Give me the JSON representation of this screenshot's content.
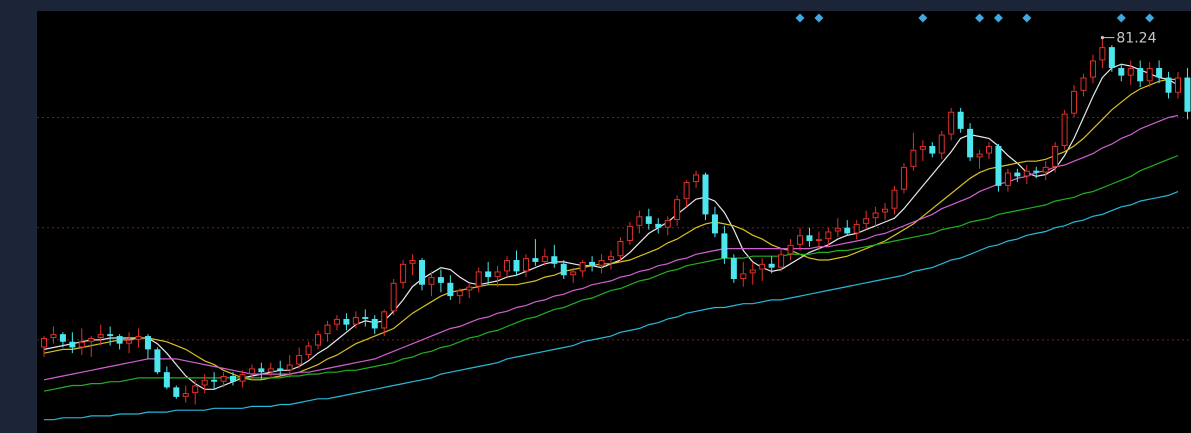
{
  "colors": {
    "background_outer": "#1c2438",
    "plot_background": "#000000",
    "grid": "#7a1c1c",
    "candle_up": "#e0302a",
    "candle_down": "#4ee6ee",
    "signal_marker": "#3fa8e0",
    "ma_white": "#e8e8e8",
    "ma_yellow": "#d8c020",
    "ma_magenta": "#d060d0",
    "ma_green": "#20b020",
    "ma_cyan": "#28b8d8"
  },
  "chart_data": {
    "type": "candlestick",
    "grid": true,
    "peak_label": "81.24",
    "ylim": [
      60.4,
      82.6
    ],
    "gridlines": [
      77.0,
      71.2,
      65.3
    ],
    "candles": [
      [
        64.9,
        65.5,
        64.4,
        65.4
      ],
      [
        65.4,
        66.0,
        65.1,
        65.6
      ],
      [
        65.6,
        65.7,
        64.9,
        65.2
      ],
      [
        65.2,
        65.7,
        64.6,
        64.9
      ],
      [
        64.9,
        65.9,
        64.5,
        65.2
      ],
      [
        65.2,
        65.5,
        64.4,
        65.4
      ],
      [
        65.4,
        66.1,
        65.0,
        65.6
      ],
      [
        65.6,
        66.0,
        65.0,
        65.5
      ],
      [
        65.5,
        65.6,
        64.8,
        65.1
      ],
      [
        65.1,
        65.7,
        64.6,
        65.3
      ],
      [
        65.3,
        65.9,
        64.9,
        65.5
      ],
      [
        65.5,
        65.6,
        64.3,
        64.8
      ],
      [
        64.8,
        64.9,
        63.5,
        63.6
      ],
      [
        63.6,
        63.9,
        62.7,
        62.8
      ],
      [
        62.8,
        62.9,
        62.2,
        62.3
      ],
      [
        62.3,
        62.9,
        62.0,
        62.5
      ],
      [
        62.5,
        63.2,
        61.9,
        62.9
      ],
      [
        62.9,
        63.5,
        62.5,
        63.2
      ],
      [
        63.2,
        63.6,
        62.7,
        63.1
      ],
      [
        63.1,
        63.6,
        62.8,
        63.4
      ],
      [
        63.4,
        63.6,
        62.9,
        63.1
      ],
      [
        63.1,
        63.7,
        62.8,
        63.5
      ],
      [
        63.5,
        64.0,
        63.2,
        63.8
      ],
      [
        63.8,
        64.1,
        63.2,
        63.6
      ],
      [
        63.6,
        64.1,
        63.3,
        63.8
      ],
      [
        63.8,
        64.2,
        63.4,
        63.7
      ],
      [
        63.7,
        64.5,
        63.3,
        64.0
      ],
      [
        64.0,
        64.9,
        63.8,
        64.5
      ],
      [
        64.5,
        65.2,
        64.3,
        65.0
      ],
      [
        65.0,
        65.8,
        64.8,
        65.6
      ],
      [
        65.6,
        66.3,
        65.2,
        66.1
      ],
      [
        66.1,
        66.6,
        65.8,
        66.4
      ],
      [
        66.4,
        66.7,
        65.8,
        66.1
      ],
      [
        66.1,
        66.8,
        65.9,
        66.5
      ],
      [
        66.5,
        66.9,
        66.0,
        66.4
      ],
      [
        66.4,
        66.6,
        65.6,
        65.9
      ],
      [
        65.9,
        66.9,
        65.5,
        66.8
      ],
      [
        66.8,
        68.5,
        66.6,
        68.3
      ],
      [
        68.3,
        69.5,
        68.0,
        69.3
      ],
      [
        69.3,
        69.8,
        68.7,
        69.5
      ],
      [
        69.5,
        69.6,
        67.9,
        68.2
      ],
      [
        68.2,
        68.9,
        67.6,
        68.6
      ],
      [
        68.6,
        69.0,
        67.8,
        68.3
      ],
      [
        68.3,
        68.7,
        67.4,
        67.6
      ],
      [
        67.6,
        68.0,
        67.2,
        67.9
      ],
      [
        67.9,
        68.3,
        67.5,
        68.1
      ],
      [
        68.1,
        69.1,
        67.8,
        68.9
      ],
      [
        68.9,
        69.4,
        68.2,
        68.6
      ],
      [
        68.6,
        69.2,
        68.1,
        68.9
      ],
      [
        68.9,
        69.7,
        68.6,
        69.5
      ],
      [
        69.5,
        70.0,
        68.7,
        68.9
      ],
      [
        68.9,
        69.8,
        68.6,
        69.6
      ],
      [
        69.6,
        70.6,
        69.2,
        69.4
      ],
      [
        69.4,
        70.1,
        69.2,
        69.7
      ],
      [
        69.7,
        70.3,
        69.1,
        69.3
      ],
      [
        69.3,
        69.5,
        68.5,
        68.7
      ],
      [
        68.7,
        69.1,
        68.3,
        68.9
      ],
      [
        68.9,
        69.5,
        68.6,
        69.4
      ],
      [
        69.4,
        69.7,
        68.9,
        69.2
      ],
      [
        69.2,
        69.8,
        68.8,
        69.5
      ],
      [
        69.5,
        70.0,
        69.0,
        69.7
      ],
      [
        69.7,
        70.7,
        69.4,
        70.5
      ],
      [
        70.5,
        71.5,
        70.3,
        71.3
      ],
      [
        71.3,
        72.1,
        70.9,
        71.8
      ],
      [
        71.8,
        72.2,
        71.1,
        71.4
      ],
      [
        71.4,
        71.7,
        70.9,
        71.2
      ],
      [
        71.2,
        71.8,
        70.8,
        71.6
      ],
      [
        71.6,
        72.9,
        71.3,
        72.7
      ],
      [
        72.7,
        73.7,
        72.3,
        73.6
      ],
      [
        73.6,
        74.2,
        73.3,
        74.0
      ],
      [
        74.0,
        74.1,
        71.6,
        71.9
      ],
      [
        71.9,
        72.3,
        70.7,
        70.9
      ],
      [
        70.9,
        71.3,
        69.3,
        69.6
      ],
      [
        69.6,
        69.8,
        68.3,
        68.5
      ],
      [
        68.5,
        69.4,
        68.1,
        68.8
      ],
      [
        68.8,
        69.4,
        68.2,
        69.0
      ],
      [
        69.0,
        69.6,
        68.4,
        69.3
      ],
      [
        69.3,
        69.7,
        68.8,
        69.1
      ],
      [
        69.1,
        70.1,
        68.9,
        69.8
      ],
      [
        69.8,
        70.6,
        69.5,
        70.3
      ],
      [
        70.3,
        71.2,
        70.0,
        70.8
      ],
      [
        70.8,
        71.2,
        70.2,
        70.5
      ],
      [
        70.5,
        71.0,
        70.0,
        70.6
      ],
      [
        70.6,
        71.2,
        70.2,
        71.0
      ],
      [
        71.0,
        71.7,
        70.7,
        71.2
      ],
      [
        71.2,
        71.6,
        70.8,
        70.9
      ],
      [
        70.9,
        71.6,
        70.6,
        71.4
      ],
      [
        71.4,
        72.1,
        71.1,
        71.7
      ],
      [
        71.7,
        72.3,
        71.3,
        72.0
      ],
      [
        72.0,
        72.5,
        71.6,
        72.2
      ],
      [
        72.2,
        73.4,
        71.9,
        73.2
      ],
      [
        73.2,
        74.6,
        73.0,
        74.4
      ],
      [
        74.4,
        76.2,
        74.2,
        75.3
      ],
      [
        75.3,
        75.8,
        74.7,
        75.5
      ],
      [
        75.5,
        75.7,
        74.9,
        75.1
      ],
      [
        75.1,
        76.3,
        74.8,
        76.1
      ],
      [
        76.1,
        77.5,
        75.8,
        77.3
      ],
      [
        77.3,
        77.5,
        76.2,
        76.4
      ],
      [
        76.4,
        76.7,
        74.7,
        74.9
      ],
      [
        74.9,
        75.3,
        74.3,
        75.1
      ],
      [
        75.1,
        75.7,
        74.8,
        75.5
      ],
      [
        75.5,
        75.6,
        73.1,
        73.4
      ],
      [
        73.4,
        74.3,
        73.1,
        74.1
      ],
      [
        74.1,
        74.3,
        73.6,
        73.9
      ],
      [
        73.9,
        74.5,
        73.5,
        74.2
      ],
      [
        74.2,
        74.4,
        73.8,
        74.1
      ],
      [
        74.1,
        74.7,
        73.7,
        74.4
      ],
      [
        74.4,
        75.7,
        74.1,
        75.5
      ],
      [
        75.5,
        77.4,
        75.3,
        77.2
      ],
      [
        77.2,
        78.7,
        77.0,
        78.4
      ],
      [
        78.4,
        79.3,
        78.1,
        79.1
      ],
      [
        79.1,
        80.3,
        78.8,
        80.0
      ],
      [
        80.0,
        81.2,
        79.6,
        80.7
      ],
      [
        80.7,
        80.8,
        79.4,
        79.6
      ],
      [
        79.6,
        79.8,
        78.9,
        79.2
      ],
      [
        79.2,
        80.0,
        78.7,
        79.6
      ],
      [
        79.6,
        80.0,
        78.6,
        78.9
      ],
      [
        78.9,
        79.9,
        78.6,
        79.6
      ],
      [
        79.6,
        80.0,
        78.8,
        79.1
      ],
      [
        79.1,
        79.4,
        78.0,
        78.3
      ],
      [
        78.3,
        79.4,
        78.0,
        79.1
      ],
      [
        79.1,
        79.6,
        76.9,
        77.3
      ]
    ],
    "ma_lines": [
      {
        "color": "#e8e8e8",
        "values": [
          64.8,
          64.9,
          65.0,
          65.1,
          65.2,
          65.3,
          65.3,
          65.4,
          65.4,
          65.4,
          65.4,
          65.4,
          65.1,
          64.6,
          64.0,
          63.4,
          63.0,
          62.7,
          62.7,
          62.9,
          63.1,
          63.3,
          63.4,
          63.5,
          63.6,
          63.7,
          63.7,
          63.9,
          64.2,
          64.6,
          64.9,
          65.3,
          65.7,
          66.1,
          66.3,
          66.2,
          66.3,
          66.8,
          67.4,
          68.1,
          68.5,
          68.8,
          69.1,
          69.0,
          68.6,
          68.3,
          68.2,
          68.3,
          68.4,
          68.6,
          68.7,
          68.9,
          69.1,
          69.3,
          69.4,
          69.4,
          69.3,
          69.2,
          69.2,
          69.1,
          69.3,
          69.5,
          69.9,
          70.4,
          70.9,
          71.2,
          71.5,
          71.9,
          72.3,
          72.7,
          72.8,
          72.6,
          72.0,
          71.1,
          70.0,
          69.4,
          69.1,
          68.9,
          69.0,
          69.3,
          69.6,
          69.9,
          70.1,
          70.3,
          70.6,
          70.8,
          70.9,
          71.1,
          71.3,
          71.5,
          71.7,
          72.2,
          72.8,
          73.4,
          74.0,
          74.6,
          75.2,
          75.9,
          76.1,
          76.0,
          75.9,
          75.5,
          75.0,
          74.6,
          74.1,
          73.9,
          74.0,
          74.3,
          75.0,
          75.9,
          77.0,
          78.1,
          79.1,
          79.6,
          79.8,
          79.7,
          79.5,
          79.3,
          79.1,
          79.0,
          78.7
        ]
      },
      {
        "color": "#d8c020",
        "values": [
          64.6,
          64.7,
          64.8,
          64.8,
          64.9,
          65.0,
          65.1,
          65.2,
          65.3,
          65.3,
          65.4,
          65.4,
          65.3,
          65.2,
          65.0,
          64.8,
          64.5,
          64.2,
          64.0,
          63.7,
          63.5,
          63.3,
          63.2,
          63.2,
          63.3,
          63.4,
          63.5,
          63.6,
          63.8,
          64.0,
          64.3,
          64.5,
          64.8,
          65.1,
          65.3,
          65.5,
          65.7,
          65.9,
          66.3,
          66.7,
          67.0,
          67.3,
          67.6,
          67.8,
          67.9,
          68.0,
          68.1,
          68.2,
          68.2,
          68.2,
          68.2,
          68.3,
          68.4,
          68.6,
          68.7,
          68.9,
          69.0,
          69.1,
          69.2,
          69.3,
          69.3,
          69.4,
          69.5,
          69.7,
          69.9,
          70.1,
          70.4,
          70.6,
          70.9,
          71.2,
          71.4,
          71.5,
          71.4,
          71.3,
          71.1,
          70.8,
          70.6,
          70.3,
          70.1,
          70.0,
          69.8,
          69.6,
          69.5,
          69.5,
          69.6,
          69.7,
          69.9,
          70.1,
          70.3,
          70.5,
          70.8,
          71.1,
          71.4,
          71.8,
          72.2,
          72.6,
          73.0,
          73.4,
          73.8,
          74.1,
          74.3,
          74.4,
          74.5,
          74.6,
          74.7,
          74.7,
          74.8,
          75.0,
          75.2,
          75.5,
          75.9,
          76.4,
          76.9,
          77.4,
          77.8,
          78.2,
          78.5,
          78.7,
          78.9,
          79.0,
          79.0
        ]
      },
      {
        "color": "#d060d0",
        "values": [
          63.2,
          63.3,
          63.4,
          63.5,
          63.6,
          63.7,
          63.8,
          63.9,
          64.0,
          64.1,
          64.2,
          64.3,
          64.3,
          64.3,
          64.3,
          64.2,
          64.1,
          64.0,
          63.9,
          63.8,
          63.7,
          63.6,
          63.5,
          63.5,
          63.5,
          63.5,
          63.5,
          63.6,
          63.6,
          63.7,
          63.8,
          63.9,
          64.0,
          64.1,
          64.2,
          64.3,
          64.5,
          64.7,
          64.9,
          65.1,
          65.3,
          65.5,
          65.7,
          65.9,
          66.0,
          66.2,
          66.4,
          66.5,
          66.7,
          66.8,
          67.0,
          67.1,
          67.3,
          67.4,
          67.6,
          67.7,
          67.9,
          68.0,
          68.2,
          68.3,
          68.4,
          68.6,
          68.7,
          68.9,
          69.0,
          69.2,
          69.3,
          69.5,
          69.6,
          69.8,
          69.9,
          70.0,
          70.1,
          70.1,
          70.1,
          70.1,
          70.1,
          70.1,
          70.1,
          70.1,
          70.1,
          70.1,
          70.2,
          70.2,
          70.3,
          70.4,
          70.5,
          70.6,
          70.8,
          70.9,
          71.1,
          71.3,
          71.5,
          71.7,
          71.9,
          72.2,
          72.4,
          72.6,
          72.8,
          73.1,
          73.3,
          73.5,
          73.6,
          73.8,
          73.9,
          74.1,
          74.2,
          74.4,
          74.5,
          74.7,
          74.9,
          75.1,
          75.4,
          75.6,
          75.9,
          76.1,
          76.4,
          76.6,
          76.8,
          77.0,
          77.1
        ]
      },
      {
        "color": "#20b020",
        "values": [
          62.6,
          62.7,
          62.8,
          62.9,
          62.9,
          63.0,
          63.0,
          63.1,
          63.1,
          63.2,
          63.3,
          63.3,
          63.3,
          63.3,
          63.3,
          63.3,
          63.3,
          63.3,
          63.3,
          63.3,
          63.3,
          63.3,
          63.3,
          63.3,
          63.3,
          63.3,
          63.4,
          63.4,
          63.5,
          63.5,
          63.6,
          63.6,
          63.7,
          63.7,
          63.8,
          63.9,
          64.0,
          64.1,
          64.3,
          64.4,
          64.6,
          64.7,
          64.9,
          65.0,
          65.2,
          65.4,
          65.5,
          65.7,
          65.8,
          66.0,
          66.2,
          66.4,
          66.5,
          66.7,
          66.9,
          67.0,
          67.2,
          67.4,
          67.5,
          67.7,
          67.9,
          68.0,
          68.2,
          68.4,
          68.5,
          68.7,
          68.9,
          69.0,
          69.2,
          69.3,
          69.4,
          69.5,
          69.6,
          69.6,
          69.6,
          69.7,
          69.7,
          69.7,
          69.7,
          69.8,
          69.8,
          69.8,
          69.9,
          69.9,
          70.0,
          70.0,
          70.1,
          70.2,
          70.3,
          70.4,
          70.5,
          70.6,
          70.7,
          70.8,
          70.9,
          71.1,
          71.2,
          71.3,
          71.5,
          71.6,
          71.7,
          71.9,
          72.0,
          72.1,
          72.2,
          72.3,
          72.4,
          72.6,
          72.7,
          72.8,
          73.0,
          73.1,
          73.3,
          73.5,
          73.7,
          73.9,
          74.2,
          74.4,
          74.6,
          74.8,
          75.0
        ]
      },
      {
        "color": "#28b8d8",
        "values": [
          61.1,
          61.1,
          61.2,
          61.2,
          61.2,
          61.3,
          61.3,
          61.3,
          61.4,
          61.4,
          61.4,
          61.5,
          61.5,
          61.5,
          61.6,
          61.6,
          61.6,
          61.6,
          61.7,
          61.7,
          61.7,
          61.7,
          61.8,
          61.8,
          61.8,
          61.9,
          61.9,
          62.0,
          62.1,
          62.2,
          62.2,
          62.3,
          62.4,
          62.5,
          62.6,
          62.7,
          62.8,
          62.9,
          63.0,
          63.1,
          63.2,
          63.3,
          63.5,
          63.6,
          63.7,
          63.8,
          63.9,
          64.0,
          64.1,
          64.3,
          64.4,
          64.5,
          64.6,
          64.7,
          64.8,
          64.9,
          65.0,
          65.2,
          65.3,
          65.4,
          65.5,
          65.7,
          65.8,
          65.9,
          66.1,
          66.2,
          66.4,
          66.5,
          66.7,
          66.8,
          66.9,
          67.0,
          67.0,
          67.1,
          67.2,
          67.2,
          67.3,
          67.4,
          67.4,
          67.5,
          67.6,
          67.7,
          67.8,
          67.9,
          68.0,
          68.1,
          68.2,
          68.3,
          68.4,
          68.5,
          68.6,
          68.7,
          68.9,
          69.0,
          69.1,
          69.3,
          69.5,
          69.6,
          69.8,
          70.0,
          70.2,
          70.3,
          70.5,
          70.6,
          70.8,
          70.9,
          71.0,
          71.2,
          71.3,
          71.5,
          71.6,
          71.8,
          71.9,
          72.1,
          72.3,
          72.4,
          72.6,
          72.7,
          72.8,
          72.9,
          73.1
        ]
      }
    ],
    "signal_markers": [
      80,
      82,
      93,
      99,
      101,
      104,
      114,
      117
    ]
  }
}
